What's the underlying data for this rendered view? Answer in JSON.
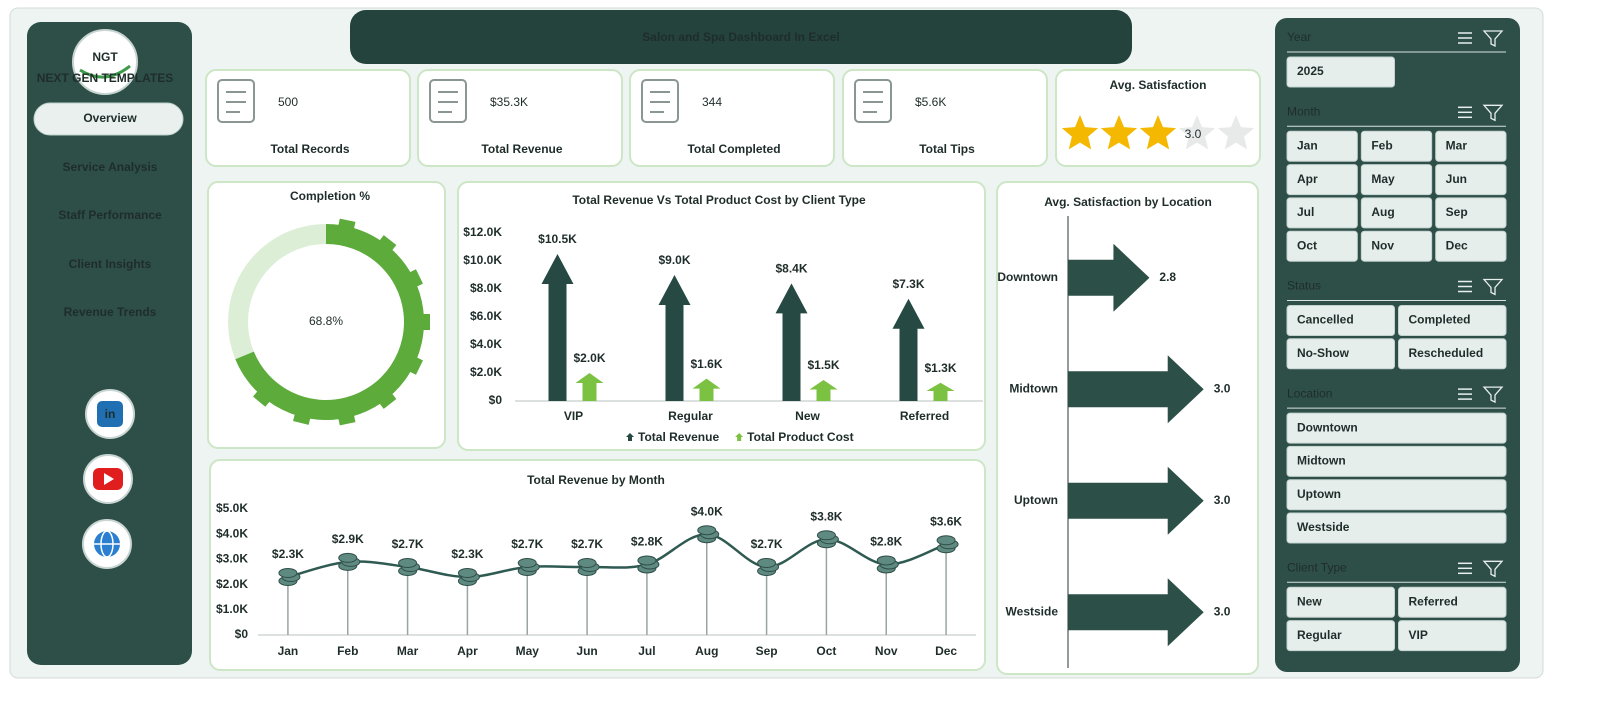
{
  "header": {
    "title": "Salon and Spa Dashboard In Excel"
  },
  "sidebar": {
    "logo": "NGT",
    "logo_subtitle": "NEXT GEN TEMPLATES",
    "nav": [
      "Overview",
      "Service Analysis",
      "Staff Performance",
      "Client Insights",
      "Revenue Trends"
    ],
    "active_nav": 0,
    "social": {
      "linkedin": "in"
    }
  },
  "kpis": [
    {
      "value": "500",
      "label": "Total Records"
    },
    {
      "value": "$35.3K",
      "label": "Total Revenue"
    },
    {
      "value": "344",
      "label": "Total Completed"
    },
    {
      "value": "$5.6K",
      "label": "Total Tips"
    }
  ],
  "rating": {
    "title": "Avg. Satisfaction",
    "value": 3,
    "label": "3.0",
    "max": 5
  },
  "slicers": [
    {
      "title": "Year",
      "columns": 2,
      "items": [
        "2025"
      ]
    },
    {
      "title": "Month",
      "columns": 3,
      "items": [
        "Jan",
        "Feb",
        "Mar",
        "Apr",
        "May",
        "Jun",
        "Jul",
        "Aug",
        "Sep",
        "Oct",
        "Nov",
        "Dec"
      ]
    },
    {
      "title": "Status",
      "columns": 2,
      "items": [
        "Cancelled",
        "Completed",
        "No-Show",
        "Rescheduled"
      ]
    },
    {
      "title": "Location",
      "columns": 1,
      "items": [
        "Downtown",
        "Midtown",
        "Uptown",
        "Westside"
      ]
    },
    {
      "title": "Client Type",
      "columns": 2,
      "items": [
        "New",
        "Referred",
        "Regular",
        "VIP"
      ]
    }
  ],
  "chart_data": [
    {
      "type": "donut",
      "title": "Completion %",
      "values": [
        68.8
      ],
      "value_labels": [
        "68.8%"
      ],
      "ylim": [
        0,
        100
      ],
      "color": "#5cab3b",
      "track_color": "#dcefd6"
    },
    {
      "type": "bar",
      "title": "Total Revenue  Vs Total Product Cost by Client Type",
      "categories": [
        "VIP",
        "Regular",
        "New",
        "Referred"
      ],
      "series": [
        {
          "name": "Total Revenue",
          "color": "#264a43",
          "values": [
            10500,
            9000,
            8400,
            7300
          ],
          "value_labels": [
            "$10.5K",
            "$9.0K",
            "$8.4K",
            "$7.3K"
          ]
        },
        {
          "name": "Total Product Cost",
          "color": "#7cc242",
          "values": [
            2000,
            1600,
            1500,
            1300
          ],
          "value_labels": [
            "$2.0K",
            "$1.6K",
            "$1.5K",
            "$1.3K"
          ]
        }
      ],
      "ylim": [
        0,
        12000
      ],
      "yticks": [
        {
          "value": 0,
          "label": "$0"
        },
        {
          "value": 2000,
          "label": "$2.0K"
        },
        {
          "value": 4000,
          "label": "$4.0K"
        },
        {
          "value": 6000,
          "label": "$6.0K"
        },
        {
          "value": 8000,
          "label": "$8.0K"
        },
        {
          "value": 10000,
          "label": "$10.0K"
        },
        {
          "value": 12000,
          "label": "$12.0K"
        }
      ],
      "legend": "bottom"
    },
    {
      "type": "line",
      "title": "Total Revenue  by Month",
      "categories": [
        "Jan",
        "Feb",
        "Mar",
        "Apr",
        "May",
        "Jun",
        "Jul",
        "Aug",
        "Sep",
        "Oct",
        "Nov",
        "Dec"
      ],
      "values": [
        2300,
        2900,
        2700,
        2300,
        2700,
        2700,
        2800,
        4000,
        2700,
        3800,
        2800,
        3600
      ],
      "value_labels": [
        "$2.3K",
        "$2.9K",
        "$2.7K",
        "$2.3K",
        "$2.7K",
        "$2.7K",
        "$2.8K",
        "$4.0K",
        "$2.7K",
        "$3.8K",
        "$2.8K",
        "$3.6K"
      ],
      "color": "#2f5a52",
      "ylim": [
        0,
        5000
      ],
      "yticks": [
        {
          "value": 0,
          "label": "$0"
        },
        {
          "value": 1000,
          "label": "$1.0K"
        },
        {
          "value": 2000,
          "label": "$2.0K"
        },
        {
          "value": 3000,
          "label": "$3.0K"
        },
        {
          "value": 4000,
          "label": "$4.0K"
        },
        {
          "value": 5000,
          "label": "$5.0K"
        }
      ]
    },
    {
      "type": "hbar",
      "title": "Avg. Satisfaction by Location",
      "categories": [
        "Downtown",
        "Midtown",
        "Uptown",
        "Westside"
      ],
      "values": [
        2.8,
        3.0,
        3.0,
        3.0
      ],
      "value_labels": [
        "2.8",
        "3.0",
        "3.0",
        "3.0"
      ],
      "color": "#2c4f48",
      "xlim": [
        2.5,
        3.2
      ]
    }
  ]
}
